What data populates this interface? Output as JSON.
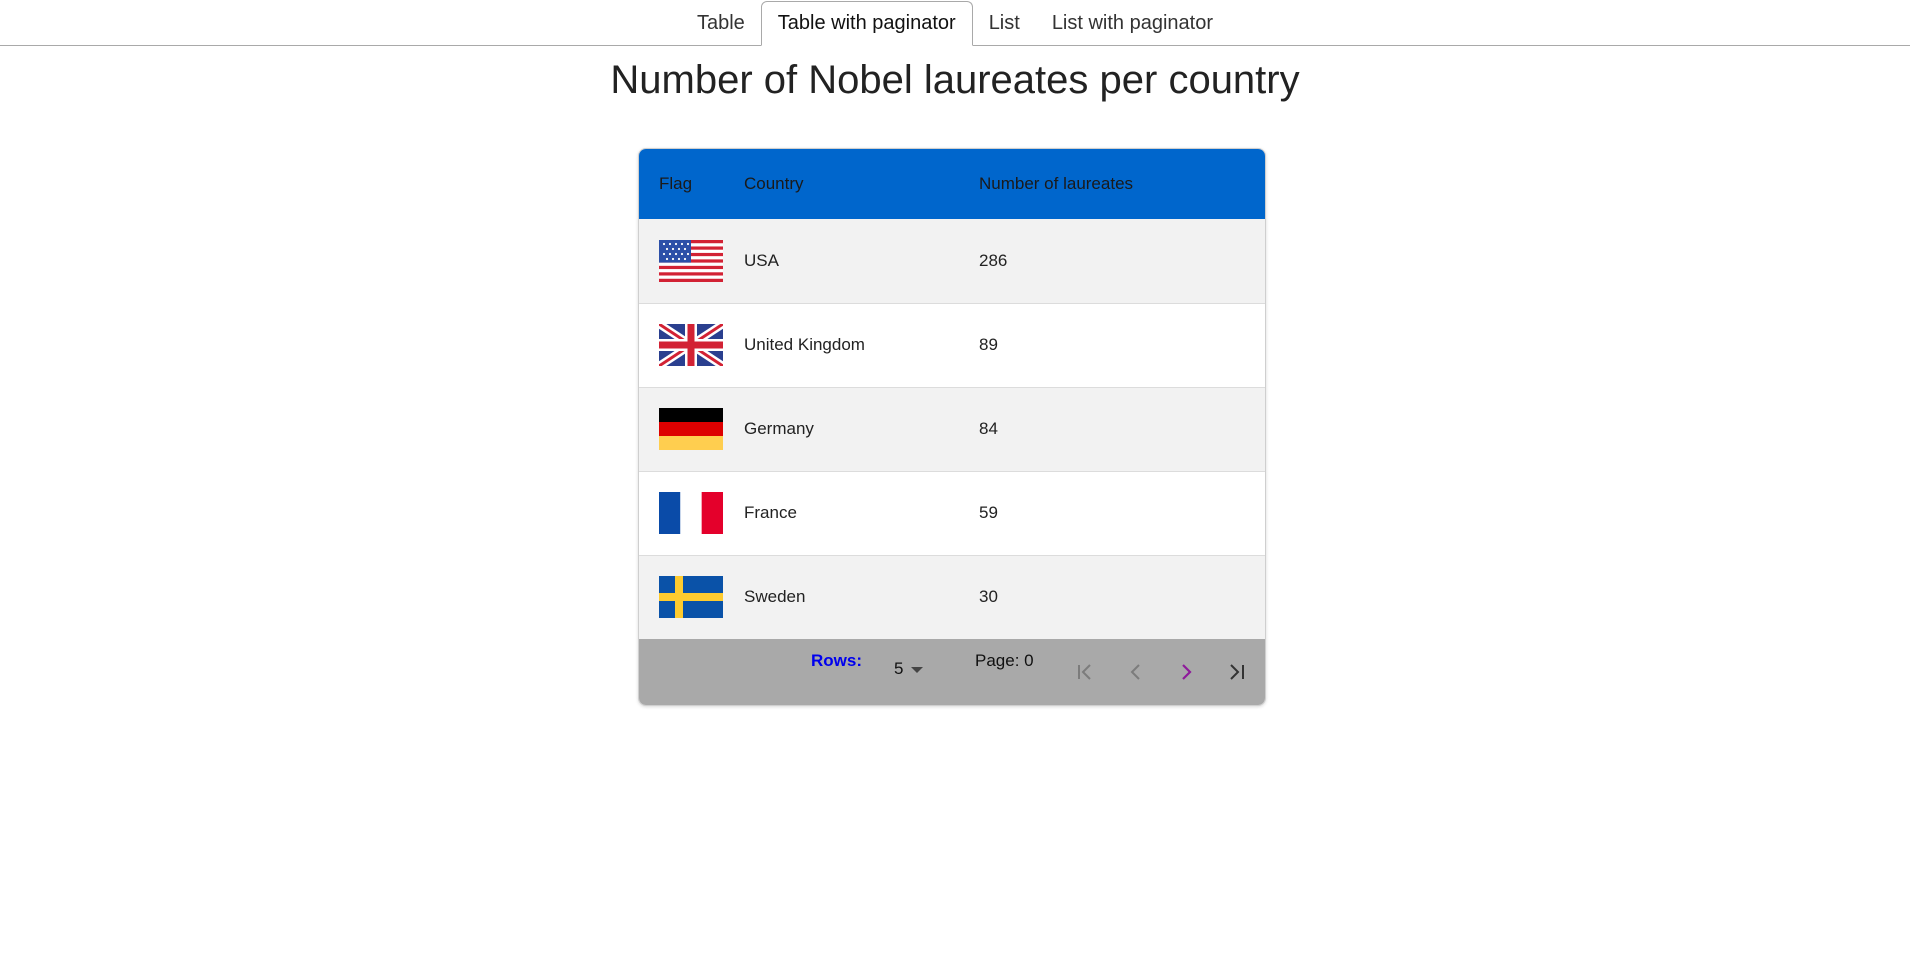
{
  "tabs": [
    {
      "label": "Table",
      "active": false
    },
    {
      "label": "Table with paginator",
      "active": true
    },
    {
      "label": "List",
      "active": false
    },
    {
      "label": "List with paginator",
      "active": false
    }
  ],
  "page_title": "Number of Nobel laureates per country",
  "table": {
    "header_color": "#0066cc",
    "columns": [
      "Flag",
      "Country",
      "Number of laureates"
    ],
    "rows": [
      {
        "flag": "usa-flag-icon",
        "country": "USA",
        "laureates": "286"
      },
      {
        "flag": "uk-flag-icon",
        "country": "United Kingdom",
        "laureates": "89"
      },
      {
        "flag": "germany-flag-icon",
        "country": "Germany",
        "laureates": "84"
      },
      {
        "flag": "france-flag-icon",
        "country": "France",
        "laureates": "59"
      },
      {
        "flag": "sweden-flag-icon",
        "country": "Sweden",
        "laureates": "30"
      }
    ]
  },
  "paginator": {
    "rows_label": "Rows:",
    "rows_value": "5",
    "page_label": "Page: 0",
    "buttons": [
      "first-page-icon",
      "previous-page-icon",
      "next-page-icon",
      "last-page-icon"
    ],
    "background": "#a9a9a9"
  }
}
